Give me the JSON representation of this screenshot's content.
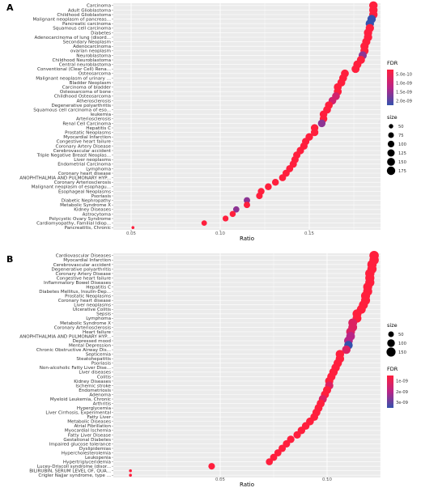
{
  "chart_data": [
    {
      "panel_label": "A",
      "type": "scatter",
      "xlabel": "Ratio",
      "x_ticks": [
        "0.05",
        "0.10",
        "0.15"
      ],
      "xlim": [
        0.04,
        0.19
      ],
      "grid": true,
      "legend_position": "right",
      "fdr_legend": {
        "title": "FDR",
        "labels": [
          "5.0e-10",
          "1.0e-09",
          "1.5e-09",
          "2.0e-09"
        ]
      },
      "size_legend": {
        "title": "size",
        "labels": [
          "50",
          "75",
          "100",
          "125",
          "150",
          "175"
        ]
      },
      "categories": [
        "Carcinoma",
        "Adult Glioblastoma",
        "Childhood Glioblastoma",
        "Malignant neoplasm of pancreas...",
        "Pancreatic carcinoma",
        "Squamous cell carcinoma",
        "Diabetes",
        "Adenocarcinoma of lung (disord...",
        "Secondary Neoplasm",
        "Adenocarcinoma",
        "ovarian neoplasm",
        "Neuroblastoma",
        "Childhood Neuroblastoma",
        "Central neuroblastoma",
        "Conventional (Clear Cell) Rena...",
        "Osteosarcoma",
        "Malignant neoplasm of urinary ...",
        "Bladder Neoplasm",
        "Carcinoma of bladder",
        "Osteosarcoma of bone",
        "Childhood Osteosarcoma",
        "Atherosclerosis",
        "Degenerative polyarthritis",
        "Squamous cell carcinoma of eso...",
        "leukemia",
        "Arteriosclerosis",
        "Renal Cell Carcinoma",
        "Hepatitis C",
        "Prostatic Neoplasms",
        "Myocardial Infarction",
        "Congestive heart failure",
        "Coronary Artery Disease",
        "Cerebrovascular accident",
        "Triple Negative Breast Neoplas...",
        "Liver neoplasms",
        "Endometrial Carcinoma",
        "Lymphoma",
        "Coronary heart disease",
        "ANOPHTHALMIA AND PULMONARY HYP...",
        "Coronary Arteriosclerosis",
        "Malignant neoplasm of esophagu...",
        "Esophageal Neoplasms",
        "Psoriasis",
        "Diabetic Nephropathy",
        "Metabolic Syndrome X",
        "Kidney Diseases",
        "Astrocytoma",
        "Polycystic Ovary Syndrome",
        "Cardiomyopathy, Familial Idiop...",
        "Pancreatitis, Chronic"
      ],
      "x": [
        0.186,
        0.186,
        0.186,
        0.185,
        0.184,
        0.184,
        0.183,
        0.183,
        0.182,
        0.181,
        0.181,
        0.18,
        0.179,
        0.177,
        0.176,
        0.17,
        0.169,
        0.168,
        0.166,
        0.166,
        0.165,
        0.163,
        0.161,
        0.16,
        0.158,
        0.158,
        0.157,
        0.153,
        0.153,
        0.15,
        0.148,
        0.147,
        0.145,
        0.143,
        0.142,
        0.141,
        0.139,
        0.137,
        0.135,
        0.131,
        0.127,
        0.123,
        0.122,
        0.115,
        0.115,
        0.109,
        0.107,
        0.103,
        0.091,
        0.051
      ],
      "fdr": [
        5e-10,
        5e-10,
        5e-10,
        2e-09,
        2e-09,
        5e-10,
        5e-10,
        5e-10,
        5e-10,
        5e-10,
        5e-10,
        1.5e-09,
        5e-10,
        5e-10,
        5e-10,
        5e-10,
        5e-10,
        5e-10,
        5e-10,
        5e-10,
        1e-09,
        1e-09,
        5e-10,
        5e-10,
        5e-10,
        5e-10,
        1.5e-09,
        5e-10,
        5e-10,
        5e-10,
        5e-10,
        5e-10,
        5e-10,
        5e-10,
        5e-10,
        5e-10,
        5e-10,
        5e-10,
        5e-10,
        5e-10,
        5e-10,
        5e-10,
        5e-10,
        1.5e-09,
        5e-10,
        1.5e-09,
        5e-10,
        5e-10,
        5e-10,
        5e-10
      ],
      "size": [
        175,
        175,
        175,
        175,
        175,
        170,
        170,
        170,
        165,
        165,
        165,
        160,
        160,
        160,
        155,
        150,
        150,
        150,
        150,
        150,
        145,
        145,
        145,
        145,
        140,
        140,
        140,
        135,
        135,
        135,
        130,
        130,
        130,
        125,
        125,
        125,
        120,
        120,
        115,
        110,
        110,
        105,
        100,
        95,
        95,
        90,
        85,
        80,
        70,
        40
      ]
    },
    {
      "panel_label": "B",
      "type": "scatter",
      "xlabel": "Ratio",
      "x_ticks": [
        "0.05",
        "0.10"
      ],
      "xlim": [
        0.0,
        0.125
      ],
      "grid": true,
      "legend_position": "right",
      "size_legend": {
        "title": "size",
        "labels": [
          "50",
          "100",
          "150"
        ]
      },
      "fdr_legend": {
        "title": "FDR",
        "labels": [
          "1e-09",
          "2e-09",
          "3e-09"
        ]
      },
      "categories": [
        "Cardiovascular Diseases",
        "Myocardial Infarction",
        "Cerebrovascular accident",
        "Degenerative polyarthritis",
        "Coronary Artery Disease",
        "Congestive heart failure",
        "Inflammatory Bowel Diseases",
        "Hepatitis C",
        "Diabetes Mellitus, Insulin-Dep...",
        "Prostatic Neoplasms",
        "Coronary heart disease",
        "Liver neoplasms",
        "Ulcerative Colitis",
        "Sepsis",
        "Lymphoma",
        "Metabolic Syndrome X",
        "Coronary Arteriosclerosis",
        "Heart failure",
        "ANOPHTHALMIA AND PULMONARY HYP...",
        "Depressed mood",
        "Mental Depression",
        "Chronic Obstructive Airway Dis...",
        "Septicemia",
        "Steatohepatitis",
        "Psoriasis",
        "Non-alcoholic Fatty Liver Dise...",
        "Liver diseases",
        "Colitis",
        "Kidney Diseases",
        "Ischemic stroke",
        "Endometriosis",
        "Adenoma",
        "Myeloid Leukemia, Chronic",
        "Arthritis",
        "Hyperglycemia",
        "Liver Cirrhosis, Experimental",
        "Fatty Liver",
        "Metabolic Diseases",
        "Atrial Fibrillation",
        "Myocardial Ischemia",
        "Fatty Liver Disease",
        "Gestational Diabetes",
        "Impaired glucose tolerance",
        "Dyslipidemias",
        "Hypercholesterolemia",
        "Leukopenia",
        "Hypertriglyceridemia",
        "Lucey-Driscoll syndrome (disor...",
        "BILIRUBIN, SERUM LEVEL OF, QUA...",
        "Crigler Najjar syndrome, type ..."
      ],
      "x": [
        0.122,
        0.122,
        0.121,
        0.121,
        0.12,
        0.12,
        0.12,
        0.119,
        0.119,
        0.118,
        0.118,
        0.117,
        0.116,
        0.114,
        0.114,
        0.112,
        0.112,
        0.111,
        0.111,
        0.11,
        0.11,
        0.109,
        0.106,
        0.106,
        0.105,
        0.104,
        0.103,
        0.102,
        0.101,
        0.101,
        0.1,
        0.099,
        0.098,
        0.097,
        0.096,
        0.095,
        0.094,
        0.092,
        0.09,
        0.088,
        0.086,
        0.083,
        0.081,
        0.079,
        0.077,
        0.075,
        0.073,
        0.046,
        0.008,
        0.008
      ],
      "fdr": [
        1e-09,
        1e-09,
        1e-09,
        1e-09,
        1e-09,
        1e-09,
        1e-09,
        1e-09,
        1e-09,
        1e-09,
        1e-09,
        1e-09,
        1e-09,
        1e-09,
        1e-09,
        1.5e-09,
        1.5e-09,
        1.5e-09,
        2e-09,
        2e-09,
        3e-09,
        1.5e-09,
        1e-09,
        1e-09,
        1e-09,
        1e-09,
        1e-09,
        1e-09,
        1e-09,
        1.5e-09,
        1e-09,
        1e-09,
        1.5e-09,
        1e-09,
        1e-09,
        1e-09,
        1e-09,
        1e-09,
        1e-09,
        1e-09,
        1e-09,
        1e-09,
        1e-09,
        1e-09,
        1e-09,
        1e-09,
        1e-09,
        1e-09,
        1e-09,
        1e-09
      ],
      "size": [
        165,
        165,
        160,
        160,
        160,
        155,
        155,
        150,
        150,
        150,
        150,
        145,
        145,
        145,
        140,
        140,
        140,
        140,
        135,
        135,
        130,
        130,
        130,
        130,
        125,
        125,
        125,
        120,
        120,
        120,
        115,
        115,
        115,
        110,
        110,
        110,
        105,
        105,
        100,
        100,
        95,
        95,
        90,
        90,
        85,
        85,
        80,
        70,
        25,
        25
      ]
    }
  ]
}
